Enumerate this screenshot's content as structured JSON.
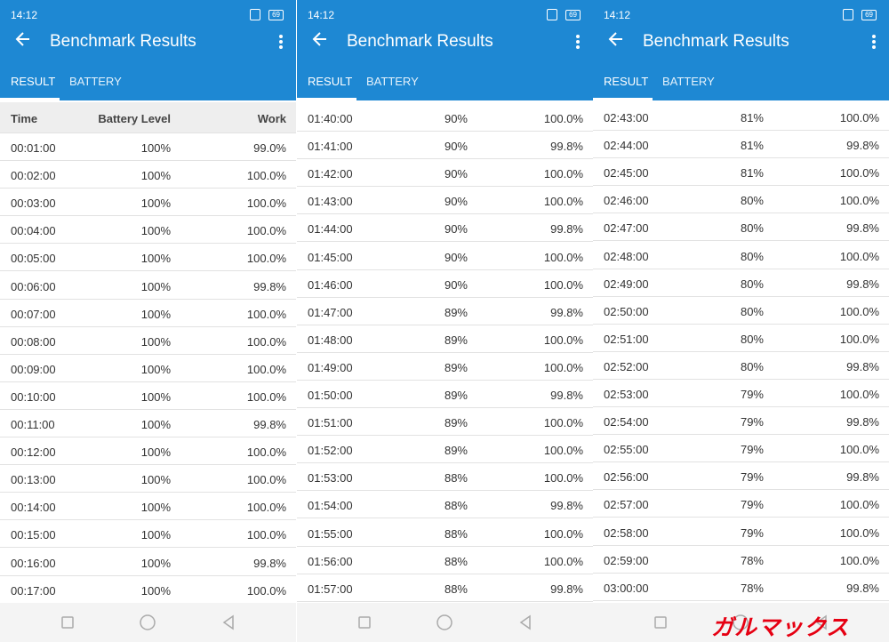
{
  "panels": [
    {
      "status_time": "14:12",
      "battery": "69",
      "title": "Benchmark Results",
      "tabs": [
        "RESULT",
        "BATTERY"
      ],
      "table_header": [
        "Time",
        "Battery Level",
        "Work"
      ],
      "rows": [
        [
          "00:01:00",
          "100%",
          "99.0%"
        ],
        [
          "00:02:00",
          "100%",
          "100.0%"
        ],
        [
          "00:03:00",
          "100%",
          "100.0%"
        ],
        [
          "00:04:00",
          "100%",
          "100.0%"
        ],
        [
          "00:05:00",
          "100%",
          "100.0%"
        ],
        [
          "00:06:00",
          "100%",
          "99.8%"
        ],
        [
          "00:07:00",
          "100%",
          "100.0%"
        ],
        [
          "00:08:00",
          "100%",
          "100.0%"
        ],
        [
          "00:09:00",
          "100%",
          "100.0%"
        ],
        [
          "00:10:00",
          "100%",
          "100.0%"
        ],
        [
          "00:11:00",
          "100%",
          "99.8%"
        ],
        [
          "00:12:00",
          "100%",
          "100.0%"
        ],
        [
          "00:13:00",
          "100%",
          "100.0%"
        ],
        [
          "00:14:00",
          "100%",
          "100.0%"
        ],
        [
          "00:15:00",
          "100%",
          "100.0%"
        ],
        [
          "00:16:00",
          "100%",
          "99.8%"
        ],
        [
          "00:17:00",
          "100%",
          "100.0%"
        ]
      ]
    },
    {
      "status_time": "14:12",
      "battery": "69",
      "title": "Benchmark Results",
      "tabs": [
        "RESULT",
        "BATTERY"
      ],
      "rows": [
        [
          "01:40:00",
          "90%",
          "100.0%"
        ],
        [
          "01:41:00",
          "90%",
          "99.8%"
        ],
        [
          "01:42:00",
          "90%",
          "100.0%"
        ],
        [
          "01:43:00",
          "90%",
          "100.0%"
        ],
        [
          "01:44:00",
          "90%",
          "99.8%"
        ],
        [
          "01:45:00",
          "90%",
          "100.0%"
        ],
        [
          "01:46:00",
          "90%",
          "100.0%"
        ],
        [
          "01:47:00",
          "89%",
          "99.8%"
        ],
        [
          "01:48:00",
          "89%",
          "100.0%"
        ],
        [
          "01:49:00",
          "89%",
          "100.0%"
        ],
        [
          "01:50:00",
          "89%",
          "99.8%"
        ],
        [
          "01:51:00",
          "89%",
          "100.0%"
        ],
        [
          "01:52:00",
          "89%",
          "100.0%"
        ],
        [
          "01:53:00",
          "88%",
          "100.0%"
        ],
        [
          "01:54:00",
          "88%",
          "99.8%"
        ],
        [
          "01:55:00",
          "88%",
          "100.0%"
        ],
        [
          "01:56:00",
          "88%",
          "100.0%"
        ],
        [
          "01:57:00",
          "88%",
          "99.8%"
        ]
      ]
    },
    {
      "status_time": "14:12",
      "battery": "69",
      "title": "Benchmark Results",
      "tabs": [
        "RESULT",
        "BATTERY"
      ],
      "rows": [
        [
          "02:43:00",
          "81%",
          "100.0%"
        ],
        [
          "02:44:00",
          "81%",
          "99.8%"
        ],
        [
          "02:45:00",
          "81%",
          "100.0%"
        ],
        [
          "02:46:00",
          "80%",
          "100.0%"
        ],
        [
          "02:47:00",
          "80%",
          "99.8%"
        ],
        [
          "02:48:00",
          "80%",
          "100.0%"
        ],
        [
          "02:49:00",
          "80%",
          "99.8%"
        ],
        [
          "02:50:00",
          "80%",
          "100.0%"
        ],
        [
          "02:51:00",
          "80%",
          "100.0%"
        ],
        [
          "02:52:00",
          "80%",
          "99.8%"
        ],
        [
          "02:53:00",
          "79%",
          "100.0%"
        ],
        [
          "02:54:00",
          "79%",
          "99.8%"
        ],
        [
          "02:55:00",
          "79%",
          "100.0%"
        ],
        [
          "02:56:00",
          "79%",
          "99.8%"
        ],
        [
          "02:57:00",
          "79%",
          "100.0%"
        ],
        [
          "02:58:00",
          "79%",
          "100.0%"
        ],
        [
          "02:59:00",
          "78%",
          "100.0%"
        ],
        [
          "03:00:00",
          "78%",
          "99.8%"
        ]
      ]
    }
  ],
  "watermark": "ガルマックス"
}
